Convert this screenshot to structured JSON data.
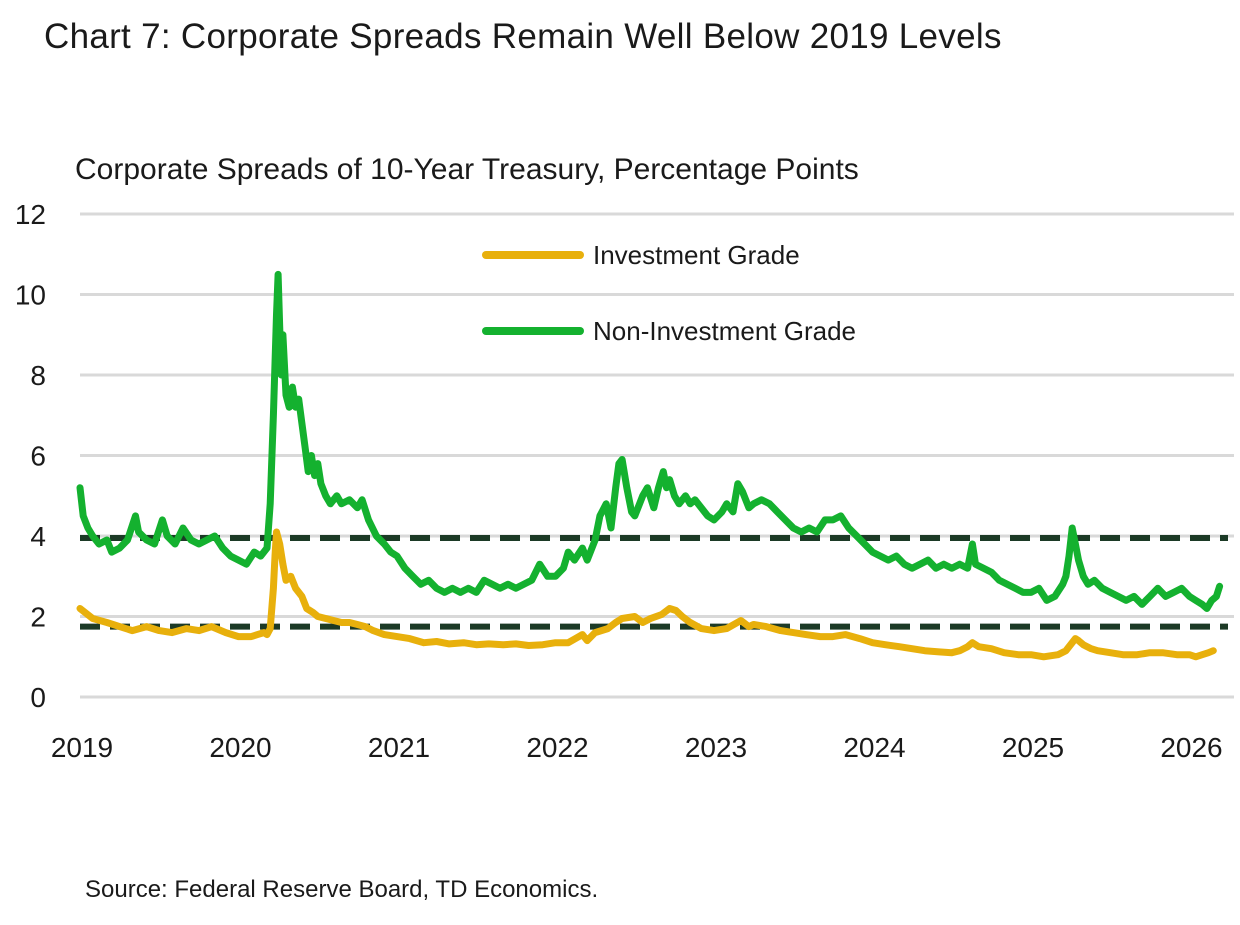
{
  "title": "Chart 7: Corporate Spreads Remain Well Below 2019 Levels",
  "subtitle": "Corporate Spreads of 10-Year Treasury, Percentage Points",
  "source": "Source: Federal Reserve Board, TD Economics.",
  "chart_data": {
    "type": "line",
    "title": "Chart 7: Corporate Spreads Remain Well Below 2019 Levels",
    "ylabel": "Corporate Spreads of 10-Year Treasury, Percentage Points",
    "xlabel": "",
    "xlim": [
      2019.0,
      2026.25
    ],
    "ylim": [
      0,
      12
    ],
    "y_ticks": [
      0,
      2,
      4,
      6,
      8,
      10,
      12
    ],
    "x_ticks": [
      "2019",
      "2020",
      "2021",
      "2022",
      "2023",
      "2024",
      "2025",
      "2026"
    ],
    "grid": true,
    "legend_position": "top-center",
    "reference_lines": [
      {
        "series": "Non-Investment Grade",
        "y": 3.95,
        "style": "dashed",
        "color": "#1c3a26"
      },
      {
        "series": "Investment Grade",
        "y": 1.75,
        "style": "dashed",
        "color": "#1c3a26"
      }
    ],
    "series": [
      {
        "name": "Investment Grade",
        "color": "#e8b00c",
        "points": [
          [
            2019.0,
            2.2
          ],
          [
            2019.08,
            1.95
          ],
          [
            2019.17,
            1.85
          ],
          [
            2019.25,
            1.75
          ],
          [
            2019.33,
            1.65
          ],
          [
            2019.42,
            1.75
          ],
          [
            2019.5,
            1.65
          ],
          [
            2019.58,
            1.6
          ],
          [
            2019.67,
            1.7
          ],
          [
            2019.75,
            1.65
          ],
          [
            2019.83,
            1.75
          ],
          [
            2019.92,
            1.6
          ],
          [
            2020.0,
            1.5
          ],
          [
            2020.08,
            1.5
          ],
          [
            2020.12,
            1.55
          ],
          [
            2020.16,
            1.6
          ],
          [
            2020.18,
            1.55
          ],
          [
            2020.2,
            1.7
          ],
          [
            2020.22,
            2.7
          ],
          [
            2020.23,
            3.5
          ],
          [
            2020.24,
            4.1
          ],
          [
            2020.26,
            3.8
          ],
          [
            2020.28,
            3.3
          ],
          [
            2020.3,
            2.9
          ],
          [
            2020.33,
            3.0
          ],
          [
            2020.36,
            2.7
          ],
          [
            2020.4,
            2.5
          ],
          [
            2020.43,
            2.2
          ],
          [
            2020.47,
            2.1
          ],
          [
            2020.5,
            2.0
          ],
          [
            2020.55,
            1.95
          ],
          [
            2020.6,
            1.9
          ],
          [
            2020.65,
            1.85
          ],
          [
            2020.7,
            1.85
          ],
          [
            2020.75,
            1.8
          ],
          [
            2020.8,
            1.75
          ],
          [
            2020.85,
            1.65
          ],
          [
            2020.92,
            1.55
          ],
          [
            2021.0,
            1.5
          ],
          [
            2021.08,
            1.45
          ],
          [
            2021.17,
            1.35
          ],
          [
            2021.25,
            1.38
          ],
          [
            2021.33,
            1.32
          ],
          [
            2021.42,
            1.35
          ],
          [
            2021.5,
            1.3
          ],
          [
            2021.58,
            1.32
          ],
          [
            2021.67,
            1.3
          ],
          [
            2021.75,
            1.32
          ],
          [
            2021.83,
            1.28
          ],
          [
            2021.92,
            1.3
          ],
          [
            2022.0,
            1.35
          ],
          [
            2022.08,
            1.35
          ],
          [
            2022.17,
            1.55
          ],
          [
            2022.2,
            1.4
          ],
          [
            2022.25,
            1.6
          ],
          [
            2022.33,
            1.7
          ],
          [
            2022.38,
            1.85
          ],
          [
            2022.42,
            1.95
          ],
          [
            2022.5,
            2.0
          ],
          [
            2022.55,
            1.85
          ],
          [
            2022.6,
            1.95
          ],
          [
            2022.67,
            2.05
          ],
          [
            2022.72,
            2.2
          ],
          [
            2022.76,
            2.15
          ],
          [
            2022.8,
            2.0
          ],
          [
            2022.85,
            1.85
          ],
          [
            2022.92,
            1.7
          ],
          [
            2023.0,
            1.65
          ],
          [
            2023.08,
            1.7
          ],
          [
            2023.17,
            1.9
          ],
          [
            2023.22,
            1.75
          ],
          [
            2023.25,
            1.8
          ],
          [
            2023.33,
            1.75
          ],
          [
            2023.42,
            1.65
          ],
          [
            2023.5,
            1.6
          ],
          [
            2023.58,
            1.55
          ],
          [
            2023.67,
            1.5
          ],
          [
            2023.75,
            1.5
          ],
          [
            2023.83,
            1.55
          ],
          [
            2023.92,
            1.45
          ],
          [
            2024.0,
            1.35
          ],
          [
            2024.08,
            1.3
          ],
          [
            2024.17,
            1.25
          ],
          [
            2024.25,
            1.2
          ],
          [
            2024.33,
            1.15
          ],
          [
            2024.42,
            1.12
          ],
          [
            2024.5,
            1.1
          ],
          [
            2024.55,
            1.15
          ],
          [
            2024.6,
            1.25
          ],
          [
            2024.63,
            1.35
          ],
          [
            2024.67,
            1.25
          ],
          [
            2024.75,
            1.2
          ],
          [
            2024.83,
            1.1
          ],
          [
            2024.92,
            1.05
          ],
          [
            2025.0,
            1.05
          ],
          [
            2025.08,
            1.0
          ],
          [
            2025.17,
            1.05
          ],
          [
            2025.22,
            1.15
          ],
          [
            2025.25,
            1.3
          ],
          [
            2025.28,
            1.45
          ],
          [
            2025.3,
            1.4
          ],
          [
            2025.33,
            1.3
          ],
          [
            2025.38,
            1.2
          ],
          [
            2025.42,
            1.15
          ],
          [
            2025.5,
            1.1
          ],
          [
            2025.58,
            1.05
          ],
          [
            2025.67,
            1.05
          ],
          [
            2025.75,
            1.1
          ],
          [
            2025.83,
            1.1
          ],
          [
            2025.92,
            1.05
          ],
          [
            2026.0,
            1.05
          ],
          [
            2026.04,
            1.0
          ],
          [
            2026.08,
            1.05
          ],
          [
            2026.12,
            1.1
          ],
          [
            2026.15,
            1.15
          ]
        ]
      },
      {
        "name": "Non-Investment Grade",
        "color": "#14b12f",
        "points": [
          [
            2019.0,
            5.2
          ],
          [
            2019.02,
            4.5
          ],
          [
            2019.05,
            4.2
          ],
          [
            2019.08,
            4.0
          ],
          [
            2019.12,
            3.8
          ],
          [
            2019.17,
            3.9
          ],
          [
            2019.2,
            3.6
          ],
          [
            2019.25,
            3.7
          ],
          [
            2019.3,
            3.9
          ],
          [
            2019.35,
            4.5
          ],
          [
            2019.37,
            4.1
          ],
          [
            2019.42,
            3.9
          ],
          [
            2019.47,
            3.8
          ],
          [
            2019.52,
            4.4
          ],
          [
            2019.55,
            4.0
          ],
          [
            2019.6,
            3.8
          ],
          [
            2019.65,
            4.2
          ],
          [
            2019.7,
            3.9
          ],
          [
            2019.75,
            3.8
          ],
          [
            2019.8,
            3.9
          ],
          [
            2019.85,
            4.0
          ],
          [
            2019.9,
            3.7
          ],
          [
            2019.95,
            3.5
          ],
          [
            2020.0,
            3.4
          ],
          [
            2020.05,
            3.3
          ],
          [
            2020.1,
            3.6
          ],
          [
            2020.14,
            3.5
          ],
          [
            2020.18,
            3.7
          ],
          [
            2020.2,
            4.8
          ],
          [
            2020.22,
            7.0
          ],
          [
            2020.24,
            9.5
          ],
          [
            2020.25,
            10.5
          ],
          [
            2020.26,
            9.2
          ],
          [
            2020.27,
            8.0
          ],
          [
            2020.28,
            9.0
          ],
          [
            2020.3,
            7.5
          ],
          [
            2020.32,
            7.2
          ],
          [
            2020.34,
            7.7
          ],
          [
            2020.36,
            7.2
          ],
          [
            2020.38,
            7.4
          ],
          [
            2020.4,
            6.8
          ],
          [
            2020.42,
            6.2
          ],
          [
            2020.44,
            5.6
          ],
          [
            2020.46,
            6.0
          ],
          [
            2020.48,
            5.5
          ],
          [
            2020.5,
            5.8
          ],
          [
            2020.52,
            5.3
          ],
          [
            2020.55,
            5.0
          ],
          [
            2020.58,
            4.8
          ],
          [
            2020.62,
            5.0
          ],
          [
            2020.65,
            4.8
          ],
          [
            2020.7,
            4.9
          ],
          [
            2020.75,
            4.7
          ],
          [
            2020.78,
            4.9
          ],
          [
            2020.82,
            4.4
          ],
          [
            2020.87,
            4.0
          ],
          [
            2020.92,
            3.8
          ],
          [
            2020.96,
            3.6
          ],
          [
            2021.0,
            3.5
          ],
          [
            2021.05,
            3.2
          ],
          [
            2021.1,
            3.0
          ],
          [
            2021.15,
            2.8
          ],
          [
            2021.2,
            2.9
          ],
          [
            2021.25,
            2.7
          ],
          [
            2021.3,
            2.6
          ],
          [
            2021.35,
            2.7
          ],
          [
            2021.4,
            2.6
          ],
          [
            2021.45,
            2.7
          ],
          [
            2021.5,
            2.6
          ],
          [
            2021.55,
            2.9
          ],
          [
            2021.6,
            2.8
          ],
          [
            2021.65,
            2.7
          ],
          [
            2021.7,
            2.8
          ],
          [
            2021.75,
            2.7
          ],
          [
            2021.8,
            2.8
          ],
          [
            2021.85,
            2.9
          ],
          [
            2021.9,
            3.3
          ],
          [
            2021.95,
            3.0
          ],
          [
            2022.0,
            3.0
          ],
          [
            2022.05,
            3.2
          ],
          [
            2022.08,
            3.6
          ],
          [
            2022.12,
            3.4
          ],
          [
            2022.17,
            3.7
          ],
          [
            2022.2,
            3.4
          ],
          [
            2022.25,
            3.9
          ],
          [
            2022.28,
            4.5
          ],
          [
            2022.32,
            4.8
          ],
          [
            2022.35,
            4.2
          ],
          [
            2022.38,
            5.2
          ],
          [
            2022.4,
            5.8
          ],
          [
            2022.42,
            5.9
          ],
          [
            2022.45,
            5.2
          ],
          [
            2022.48,
            4.6
          ],
          [
            2022.5,
            4.5
          ],
          [
            2022.55,
            5.0
          ],
          [
            2022.58,
            5.2
          ],
          [
            2022.62,
            4.7
          ],
          [
            2022.65,
            5.2
          ],
          [
            2022.68,
            5.6
          ],
          [
            2022.7,
            5.2
          ],
          [
            2022.72,
            5.4
          ],
          [
            2022.75,
            5.0
          ],
          [
            2022.78,
            4.8
          ],
          [
            2022.82,
            5.0
          ],
          [
            2022.85,
            4.8
          ],
          [
            2022.88,
            4.9
          ],
          [
            2022.92,
            4.7
          ],
          [
            2022.96,
            4.5
          ],
          [
            2023.0,
            4.4
          ],
          [
            2023.05,
            4.6
          ],
          [
            2023.08,
            4.8
          ],
          [
            2023.12,
            4.6
          ],
          [
            2023.15,
            5.3
          ],
          [
            2023.18,
            5.1
          ],
          [
            2023.22,
            4.7
          ],
          [
            2023.25,
            4.8
          ],
          [
            2023.3,
            4.9
          ],
          [
            2023.35,
            4.8
          ],
          [
            2023.4,
            4.6
          ],
          [
            2023.45,
            4.4
          ],
          [
            2023.5,
            4.2
          ],
          [
            2023.55,
            4.1
          ],
          [
            2023.6,
            4.2
          ],
          [
            2023.65,
            4.1
          ],
          [
            2023.7,
            4.4
          ],
          [
            2023.75,
            4.4
          ],
          [
            2023.8,
            4.5
          ],
          [
            2023.85,
            4.2
          ],
          [
            2023.9,
            4.0
          ],
          [
            2023.95,
            3.8
          ],
          [
            2024.0,
            3.6
          ],
          [
            2024.05,
            3.5
          ],
          [
            2024.1,
            3.4
          ],
          [
            2024.15,
            3.5
          ],
          [
            2024.2,
            3.3
          ],
          [
            2024.25,
            3.2
          ],
          [
            2024.3,
            3.3
          ],
          [
            2024.35,
            3.4
          ],
          [
            2024.4,
            3.2
          ],
          [
            2024.45,
            3.3
          ],
          [
            2024.5,
            3.2
          ],
          [
            2024.55,
            3.3
          ],
          [
            2024.6,
            3.2
          ],
          [
            2024.63,
            3.8
          ],
          [
            2024.65,
            3.3
          ],
          [
            2024.7,
            3.2
          ],
          [
            2024.75,
            3.1
          ],
          [
            2024.8,
            2.9
          ],
          [
            2024.85,
            2.8
          ],
          [
            2024.9,
            2.7
          ],
          [
            2024.95,
            2.6
          ],
          [
            2025.0,
            2.6
          ],
          [
            2025.05,
            2.7
          ],
          [
            2025.1,
            2.4
          ],
          [
            2025.15,
            2.5
          ],
          [
            2025.2,
            2.8
          ],
          [
            2025.22,
            3.0
          ],
          [
            2025.24,
            3.5
          ],
          [
            2025.26,
            4.2
          ],
          [
            2025.28,
            3.8
          ],
          [
            2025.3,
            3.4
          ],
          [
            2025.33,
            3.0
          ],
          [
            2025.36,
            2.8
          ],
          [
            2025.4,
            2.9
          ],
          [
            2025.45,
            2.7
          ],
          [
            2025.5,
            2.6
          ],
          [
            2025.55,
            2.5
          ],
          [
            2025.6,
            2.4
          ],
          [
            2025.65,
            2.5
          ],
          [
            2025.7,
            2.3
          ],
          [
            2025.75,
            2.5
          ],
          [
            2025.8,
            2.7
          ],
          [
            2025.85,
            2.5
          ],
          [
            2025.9,
            2.6
          ],
          [
            2025.95,
            2.7
          ],
          [
            2026.0,
            2.5
          ],
          [
            2026.04,
            2.4
          ],
          [
            2026.08,
            2.3
          ],
          [
            2026.11,
            2.2
          ],
          [
            2026.14,
            2.4
          ],
          [
            2026.17,
            2.5
          ],
          [
            2026.19,
            2.75
          ]
        ]
      }
    ]
  }
}
